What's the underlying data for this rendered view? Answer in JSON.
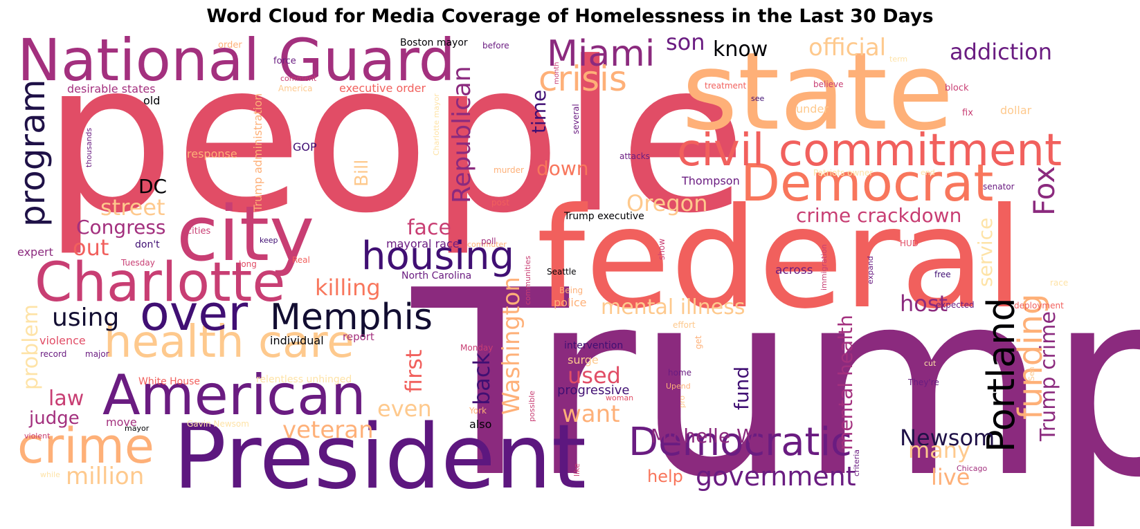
{
  "chart_data": {
    "type": "wordcloud",
    "title": "Word Cloud for Media Coverage of Homelessness in the Last 30 Days",
    "words": [
      {
        "text": "people",
        "weight": 1.0,
        "color": "#e14d66"
      },
      {
        "text": "Trump",
        "weight": 0.98,
        "color": "#8b2a7e"
      },
      {
        "text": "federal",
        "weight": 0.9,
        "color": "#f1605d"
      },
      {
        "text": "state",
        "weight": 0.88,
        "color": "#feb078"
      },
      {
        "text": "President",
        "weight": 0.62,
        "color": "#5d177f"
      },
      {
        "text": "National Guard",
        "weight": 0.5,
        "color": "#a3307e"
      },
      {
        "text": "city",
        "weight": 0.55,
        "color": "#c83e73"
      },
      {
        "text": "Charlotte",
        "weight": 0.45,
        "color": "#c83e73"
      },
      {
        "text": "American",
        "weight": 0.45,
        "color": "#6a1c81"
      },
      {
        "text": "Democrat",
        "weight": 0.4,
        "color": "#f8765c"
      },
      {
        "text": "civil commitment",
        "weight": 0.38,
        "color": "#f1605d"
      },
      {
        "text": "health care",
        "weight": 0.35,
        "color": "#fec98d"
      },
      {
        "text": "over",
        "weight": 0.38,
        "color": "#400f73"
      },
      {
        "text": "crime",
        "weight": 0.38,
        "color": "#feb078"
      },
      {
        "text": "housing",
        "weight": 0.3,
        "color": "#400f73"
      },
      {
        "text": "Memphis",
        "weight": 0.3,
        "color": "#120d31"
      },
      {
        "text": "Democratic",
        "weight": 0.3,
        "color": "#6a1c81"
      },
      {
        "text": "Portland",
        "weight": 0.3,
        "color": "#000004"
      },
      {
        "text": "Miami",
        "weight": 0.28,
        "color": "#8b2a7e"
      },
      {
        "text": "crisis",
        "weight": 0.28,
        "color": "#feb078"
      },
      {
        "text": "program",
        "weight": 0.3,
        "color": "#1f1147"
      },
      {
        "text": "funding",
        "weight": 0.28,
        "color": "#feb078"
      },
      {
        "text": "Fox",
        "weight": 0.27,
        "color": "#8b2a7e"
      },
      {
        "text": "government",
        "weight": 0.22,
        "color": "#6a1c81"
      },
      {
        "text": "official",
        "weight": 0.22,
        "color": "#fec98d"
      },
      {
        "text": "addiction",
        "weight": 0.2,
        "color": "#6a1c81"
      },
      {
        "text": "Republican",
        "weight": 0.22,
        "color": "#8b2a7e"
      },
      {
        "text": "Washington",
        "weight": 0.22,
        "color": "#feb078"
      },
      {
        "text": "mental health",
        "weight": 0.2,
        "color": "#a3307e"
      },
      {
        "text": "Trump crime",
        "weight": 0.2,
        "color": "#8b2a7e"
      },
      {
        "text": "Oregon",
        "weight": 0.2,
        "color": "#fec98d"
      },
      {
        "text": "mental illness",
        "weight": 0.18,
        "color": "#fec98d"
      },
      {
        "text": "Michelle Wu",
        "weight": 0.18,
        "color": "#8b2a7e"
      },
      {
        "text": "million",
        "weight": 0.18,
        "color": "#fec98d"
      },
      {
        "text": "veteran",
        "weight": 0.18,
        "color": "#feb078"
      },
      {
        "text": "crime crackdown",
        "weight": 0.17,
        "color": "#c83e73"
      },
      {
        "text": "Newsom",
        "weight": 0.18,
        "color": "#1f1147"
      },
      {
        "text": "using",
        "weight": 0.2,
        "color": "#120d31"
      },
      {
        "text": "killing",
        "weight": 0.18,
        "color": "#f8765c"
      },
      {
        "text": "want",
        "weight": 0.18,
        "color": "#feb078"
      },
      {
        "text": "used",
        "weight": 0.18,
        "color": "#e14d66"
      },
      {
        "text": "even",
        "weight": 0.18,
        "color": "#fec98d"
      },
      {
        "text": "many",
        "weight": 0.18,
        "color": "#fec98d"
      },
      {
        "text": "live",
        "weight": 0.18,
        "color": "#feb078"
      },
      {
        "text": "first",
        "weight": 0.18,
        "color": "#f1605d"
      },
      {
        "text": "back",
        "weight": 0.18,
        "color": "#400f73"
      },
      {
        "text": "fund",
        "weight": 0.16,
        "color": "#400f73"
      },
      {
        "text": "service",
        "weight": 0.16,
        "color": "#fee3a7"
      },
      {
        "text": "host",
        "weight": 0.17,
        "color": "#8b2a7e"
      },
      {
        "text": "street",
        "weight": 0.18,
        "color": "#fec98d"
      },
      {
        "text": "Congress",
        "weight": 0.16,
        "color": "#a3307e"
      },
      {
        "text": "out",
        "weight": 0.17,
        "color": "#f1605d"
      },
      {
        "text": "face",
        "weight": 0.16,
        "color": "#c83e73"
      },
      {
        "text": "DC",
        "weight": 0.16,
        "color": "#000004"
      },
      {
        "text": "son",
        "weight": 0.16,
        "color": "#6a1c81"
      },
      {
        "text": "know",
        "weight": 0.16,
        "color": "#000004"
      },
      {
        "text": "time",
        "weight": 0.16,
        "color": "#400f73"
      },
      {
        "text": "down",
        "weight": 0.16,
        "color": "#f8765c"
      },
      {
        "text": "Bill",
        "weight": 0.16,
        "color": "#fec98d"
      },
      {
        "text": "law",
        "weight": 0.16,
        "color": "#c83e73"
      },
      {
        "text": "judge",
        "weight": 0.14,
        "color": "#a3307e"
      },
      {
        "text": "problem",
        "weight": 0.16,
        "color": "#fee3a7"
      },
      {
        "text": "help",
        "weight": 0.14,
        "color": "#f8765c"
      },
      {
        "text": "police",
        "weight": 0.1,
        "color": "#feb078"
      },
      {
        "text": "progressive",
        "weight": 0.1,
        "color": "#400f73"
      },
      {
        "text": "surge",
        "weight": 0.09,
        "color": "#fec98d"
      },
      {
        "text": "across",
        "weight": 0.1,
        "color": "#6a1c81"
      },
      {
        "text": "Thompson",
        "weight": 0.09,
        "color": "#6a1c81"
      },
      {
        "text": "mayoral race",
        "weight": 0.09,
        "color": "#6a1c81"
      },
      {
        "text": "North Carolina",
        "weight": 0.08,
        "color": "#6a1c81"
      },
      {
        "text": "individual",
        "weight": 0.09,
        "color": "#000004"
      },
      {
        "text": "violence",
        "weight": 0.09,
        "color": "#e14d66"
      },
      {
        "text": "report",
        "weight": 0.08,
        "color": "#a3307e"
      },
      {
        "text": "intervention",
        "weight": 0.08,
        "color": "#400f73"
      },
      {
        "text": "executive order",
        "weight": 0.08,
        "color": "#f1605d"
      },
      {
        "text": "desirable states",
        "weight": 0.08,
        "color": "#a3307e"
      },
      {
        "text": "Trump administration",
        "weight": 0.08,
        "color": "#feb078"
      },
      {
        "text": "response",
        "weight": 0.08,
        "color": "#feb078"
      },
      {
        "text": "Trump executive",
        "weight": 0.07,
        "color": "#000004"
      },
      {
        "text": "relentless unhinged",
        "weight": 0.07,
        "color": "#fee3a7"
      },
      {
        "text": "White House",
        "weight": 0.07,
        "color": "#f1605d"
      },
      {
        "text": "expert",
        "weight": 0.08,
        "color": "#8b2a7e"
      },
      {
        "text": "GOP",
        "weight": 0.08,
        "color": "#400f73"
      },
      {
        "text": "Boston mayor",
        "weight": 0.07,
        "color": "#000004"
      },
      {
        "text": "under",
        "weight": 0.07,
        "color": "#fec98d"
      },
      {
        "text": "dollar",
        "weight": 0.07,
        "color": "#fec98d"
      },
      {
        "text": "move",
        "weight": 0.07,
        "color": "#a3307e"
      },
      {
        "text": "also",
        "weight": 0.07,
        "color": "#000004"
      },
      {
        "text": "old",
        "weight": 0.07,
        "color": "#000004"
      },
      {
        "text": "don't",
        "weight": 0.07,
        "color": "#400f73"
      },
      {
        "text": "cities",
        "weight": 0.06,
        "color": "#c83e73"
      },
      {
        "text": "force",
        "weight": 0.06,
        "color": "#6a1c81"
      },
      {
        "text": "order",
        "weight": 0.06,
        "color": "#feb078"
      },
      {
        "text": "before",
        "weight": 0.05,
        "color": "#6a1c81"
      },
      {
        "text": "believe",
        "weight": 0.05,
        "color": "#c83e73"
      },
      {
        "text": "treatment",
        "weight": 0.05,
        "color": "#f1605d"
      },
      {
        "text": "block",
        "weight": 0.05,
        "color": "#c83e73"
      },
      {
        "text": "fix",
        "weight": 0.05,
        "color": "#c83e73"
      },
      {
        "text": "see",
        "weight": 0.05,
        "color": "#400f73"
      },
      {
        "text": "term",
        "weight": 0.05,
        "color": "#fee3a7"
      },
      {
        "text": "comment",
        "weight": 0.05,
        "color": "#c83e73"
      },
      {
        "text": "America",
        "weight": 0.05,
        "color": "#fec98d"
      },
      {
        "text": "Tuesday",
        "weight": 0.05,
        "color": "#c83e73"
      },
      {
        "text": "keep",
        "weight": 0.05,
        "color": "#400f73"
      },
      {
        "text": "long",
        "weight": 0.05,
        "color": "#e14d66"
      },
      {
        "text": "Real",
        "weight": 0.05,
        "color": "#f1605d"
      },
      {
        "text": "commuter",
        "weight": 0.05,
        "color": "#feb078"
      },
      {
        "text": "poll",
        "weight": 0.05,
        "color": "#a3307e"
      },
      {
        "text": "post",
        "weight": 0.05,
        "color": "#f1605d"
      },
      {
        "text": "attacks",
        "weight": 0.05,
        "color": "#6a1c81"
      },
      {
        "text": "murder",
        "weight": 0.05,
        "color": "#feb078"
      },
      {
        "text": "Patriots owner",
        "weight": 0.05,
        "color": "#fee3a7"
      },
      {
        "text": "end",
        "weight": 0.05,
        "color": "#fee3a7"
      },
      {
        "text": "senator",
        "weight": 0.05,
        "color": "#6a1c81"
      },
      {
        "text": "HUD",
        "weight": 0.05,
        "color": "#e14d66"
      },
      {
        "text": "free",
        "weight": 0.05,
        "color": "#400f73"
      },
      {
        "text": "race",
        "weight": 0.05,
        "color": "#fee3a7"
      },
      {
        "text": "expected",
        "weight": 0.05,
        "color": "#6a1c81"
      },
      {
        "text": "deployment",
        "weight": 0.05,
        "color": "#f1605d"
      },
      {
        "text": "Seattle",
        "weight": 0.05,
        "color": "#000004"
      },
      {
        "text": "Being",
        "weight": 0.05,
        "color": "#feb078"
      },
      {
        "text": "effort",
        "weight": 0.05,
        "color": "#fec98d"
      },
      {
        "text": "home",
        "weight": 0.05,
        "color": "#6a1c81"
      },
      {
        "text": "Upend",
        "weight": 0.05,
        "color": "#feb078"
      },
      {
        "text": "woman",
        "weight": 0.05,
        "color": "#e14d66"
      },
      {
        "text": "York",
        "weight": 0.05,
        "color": "#feb078"
      },
      {
        "text": "Monday",
        "weight": 0.05,
        "color": "#c83e73"
      },
      {
        "text": "cut",
        "weight": 0.05,
        "color": "#fee3a7"
      },
      {
        "text": "They're",
        "weight": 0.05,
        "color": "#6a1c81"
      },
      {
        "text": "Chicago",
        "weight": 0.05,
        "color": "#a3307e"
      },
      {
        "text": "record",
        "weight": 0.05,
        "color": "#6a1c81"
      },
      {
        "text": "major",
        "weight": 0.05,
        "color": "#6a1c81"
      },
      {
        "text": "violent",
        "weight": 0.05,
        "color": "#c83e73"
      },
      {
        "text": "while",
        "weight": 0.05,
        "color": "#fee3a7"
      },
      {
        "text": "mayor",
        "weight": 0.05,
        "color": "#000004"
      },
      {
        "text": "Gavin Newsom",
        "weight": 0.05,
        "color": "#fee3a7"
      },
      {
        "text": "thousands",
        "weight": 0.05,
        "color": "#6a1c81"
      },
      {
        "text": "Charlotte mayor",
        "weight": 0.05,
        "color": "#fee3a7"
      },
      {
        "text": "several",
        "weight": 0.05,
        "color": "#6a1c81"
      },
      {
        "text": "month",
        "weight": 0.05,
        "color": "#c83e73"
      },
      {
        "text": "show",
        "weight": 0.05,
        "color": "#c83e73"
      },
      {
        "text": "immigration",
        "weight": 0.05,
        "color": "#c83e73"
      },
      {
        "text": "expand",
        "weight": 0.05,
        "color": "#6a1c81"
      },
      {
        "text": "communities",
        "weight": 0.05,
        "color": "#c83e73"
      },
      {
        "text": "get",
        "weight": 0.05,
        "color": "#feb078"
      },
      {
        "text": "pro",
        "weight": 0.05,
        "color": "#fec98d"
      },
      {
        "text": "possible",
        "weight": 0.05,
        "color": "#c83e73"
      },
      {
        "text": "like",
        "weight": 0.05,
        "color": "#c83e73"
      },
      {
        "text": "criteria",
        "weight": 0.05,
        "color": "#6a1c81"
      },
      {
        "text": "Sen",
        "weight": 0.05,
        "color": "#fec98d"
      }
    ]
  }
}
